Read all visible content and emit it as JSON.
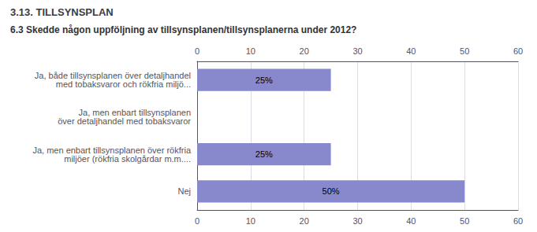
{
  "chart_data": {
    "type": "bar",
    "orientation": "horizontal",
    "title": "3.13. TILLSYNSPLAN",
    "subtitle": "6.3 Skedde någon uppföljning av tillsynsplanen/tillsynsplanerna under 2012?",
    "categories": [
      "Ja, både tillsynsplanen över detaljhandel\nmed tobaksvaror och rökfria miljö...",
      "Ja, men enbart tillsynsplanen\növer detaljhandel med tobaksvaror",
      "Ja, men enbart tillsynsplanen över rökfria\nmiljöer (rökfria skolgårdar m.m....",
      "Nej"
    ],
    "values": [
      25,
      0,
      25,
      50
    ],
    "value_labels": [
      "25%",
      null,
      "25%",
      "50%"
    ],
    "data_labels": true,
    "color": "#8888cc",
    "xlim": [
      0,
      60
    ],
    "xticks": [
      0,
      10,
      20,
      30,
      40,
      50,
      60
    ],
    "grid": true
  }
}
